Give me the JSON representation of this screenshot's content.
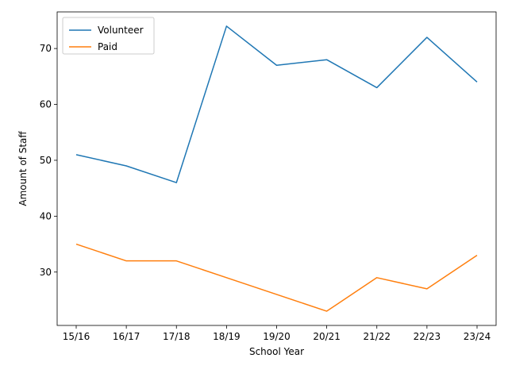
{
  "chart_data": {
    "type": "line",
    "categories": [
      "15/16",
      "16/17",
      "17/18",
      "18/19",
      "19/20",
      "20/21",
      "21/22",
      "22/23",
      "23/24"
    ],
    "series": [
      {
        "name": "Volunteer",
        "values": [
          51,
          49,
          46,
          74,
          67,
          68,
          63,
          72,
          64
        ],
        "color": "#1f77b4"
      },
      {
        "name": "Paid",
        "values": [
          35,
          32,
          32,
          29,
          26,
          23,
          29,
          27,
          33
        ],
        "color": "#ff7f0e"
      }
    ],
    "title": "",
    "xlabel": "School Year",
    "ylabel": "Amount of Staff",
    "ylim": [
      20.45,
      76.55
    ],
    "yticks": [
      30,
      40,
      50,
      60,
      70
    ],
    "grid": false,
    "legend_position": "top-left"
  }
}
